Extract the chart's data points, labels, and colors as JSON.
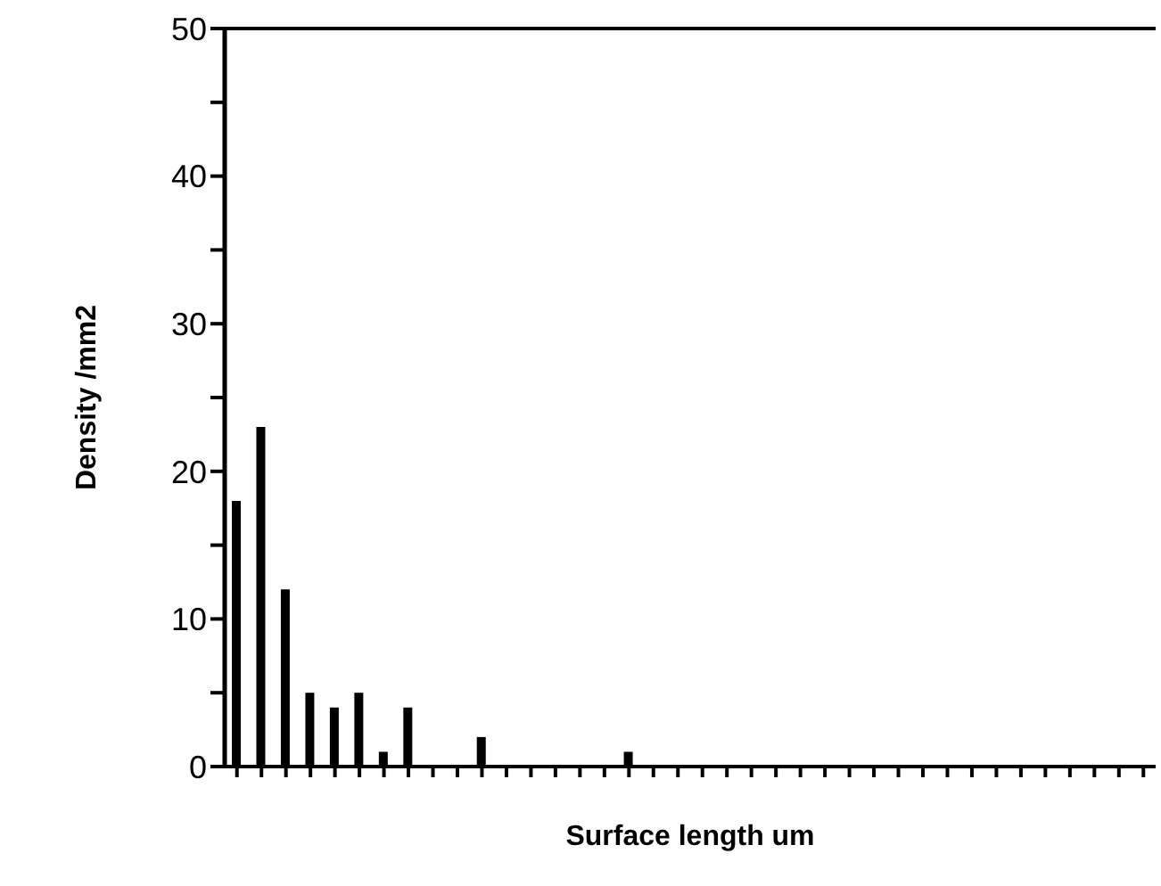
{
  "chart_data": {
    "type": "bar",
    "xlabel": "Surface length    um",
    "ylabel": "Density      /mm2",
    "categories": [
      null,
      null,
      null,
      null,
      null,
      null,
      null,
      null,
      null,
      null,
      null,
      null,
      null,
      null,
      null,
      null,
      null,
      null,
      null,
      null,
      null,
      null,
      null,
      null,
      null,
      null,
      null,
      null,
      null,
      null,
      null,
      null,
      null,
      null,
      null,
      null,
      null,
      null
    ],
    "values": [
      18,
      23,
      12,
      5,
      4,
      5,
      1,
      4,
      0,
      0,
      2,
      0,
      0,
      0,
      0,
      0,
      1,
      0,
      0,
      0,
      0,
      0,
      0,
      0,
      0,
      0,
      0,
      0,
      0,
      0,
      0,
      0,
      0,
      0,
      0,
      0,
      0,
      0
    ],
    "color": "#000000",
    "ylim": [
      0,
      50
    ],
    "yticks": [
      0,
      {
        "value": 5,
        "label": null
      },
      10,
      {
        "value": 15,
        "label": null
      },
      20,
      {
        "value": 25,
        "label": null
      },
      30,
      {
        "value": 35,
        "label": null
      },
      40,
      {
        "value": 45,
        "label": null
      },
      50
    ],
    "grid": false,
    "legend": false
  }
}
